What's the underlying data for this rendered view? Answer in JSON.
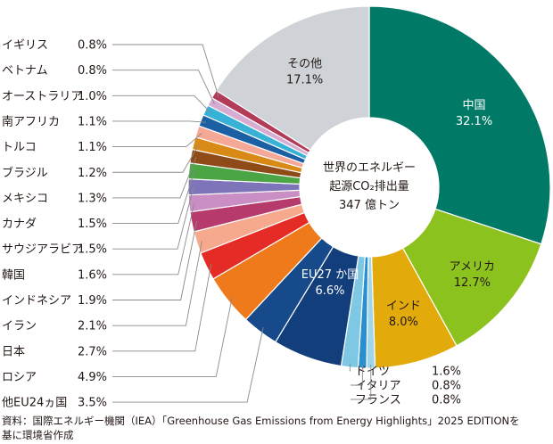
{
  "chart_data": {
    "type": "pie",
    "donut": true,
    "center_text": [
      "世界のエネルギー",
      "起源CO₂排出量",
      "347 億トン"
    ],
    "slices": [
      {
        "label": "中国",
        "value": 32.1,
        "value_text": "32.1%",
        "color": "#007a66",
        "text_color": "#ffffff"
      },
      {
        "label": "アメリカ",
        "value": 12.7,
        "value_text": "12.7%",
        "color": "#8cc21e",
        "text_color": "#231815"
      },
      {
        "label": "インド",
        "value": 8.0,
        "value_text": "8.0%",
        "color": "#e2aa0a",
        "text_color": "#231815"
      },
      {
        "label": "フランス",
        "value": 0.8,
        "value_text": "0.8%",
        "color": "#9fd6ea"
      },
      {
        "label": "イタリア",
        "value": 0.8,
        "value_text": "0.8%",
        "color": "#2a8fce"
      },
      {
        "label": "ドイツ",
        "value": 1.6,
        "value_text": "1.6%",
        "color": "#7fc8e3"
      },
      {
        "label": "EU27 か国",
        "value": 6.6,
        "value_text": "6.6%",
        "color": "#123e7c",
        "text_color": "#ffffff"
      },
      {
        "label": "他EU24ヵ国",
        "value": 3.5,
        "value_text": "3.5%",
        "color": "#164a8a"
      },
      {
        "label": "ロシア",
        "value": 4.9,
        "value_text": "4.9%",
        "color": "#ee7a1b"
      },
      {
        "label": "日本",
        "value": 2.7,
        "value_text": "2.7%",
        "color": "#e52b26"
      },
      {
        "label": "イラン",
        "value": 2.1,
        "value_text": "2.1%",
        "color": "#f7a98d"
      },
      {
        "label": "インドネシア",
        "value": 1.9,
        "value_text": "1.9%",
        "color": "#b63a6c"
      },
      {
        "label": "韓国",
        "value": 1.6,
        "value_text": "1.6%",
        "color": "#c98fc4"
      },
      {
        "label": "サウジアラビア",
        "value": 1.5,
        "value_text": "1.5%",
        "color": "#7e74ba"
      },
      {
        "label": "カナダ",
        "value": 1.5,
        "value_text": "1.5%",
        "color": "#4ba545"
      },
      {
        "label": "メキシコ",
        "value": 1.3,
        "value_text": "1.3%",
        "color": "#8e4a17"
      },
      {
        "label": "ブラジル",
        "value": 1.2,
        "value_text": "1.2%",
        "color": "#d98a16"
      },
      {
        "label": "トルコ",
        "value": 1.1,
        "value_text": "1.1%",
        "color": "#f6a896"
      },
      {
        "label": "南アフリカ",
        "value": 1.1,
        "value_text": "1.1%",
        "color": "#1b5fa4"
      },
      {
        "label": "オーストラリア",
        "value": 1.0,
        "value_text": "1.0%",
        "color": "#37b2d6"
      },
      {
        "label": "ベトナム",
        "value": 0.8,
        "value_text": "0.8%",
        "color": "#d7acd2"
      },
      {
        "label": "イギリス",
        "value": 0.8,
        "value_text": "0.8%",
        "color": "#b23b58"
      },
      {
        "label": "その他",
        "value": 17.1,
        "value_text": "17.1%",
        "color": "#cfd3d8",
        "text_color": "#231815"
      }
    ],
    "legend": "left, with leader lines"
  },
  "source": {
    "line1": "資料：国際エネルギー機関（IEA）「Greenhouse Gas Emissions from Energy Highlights」2025 EDITIONを",
    "line2": "基に環境省作成"
  }
}
